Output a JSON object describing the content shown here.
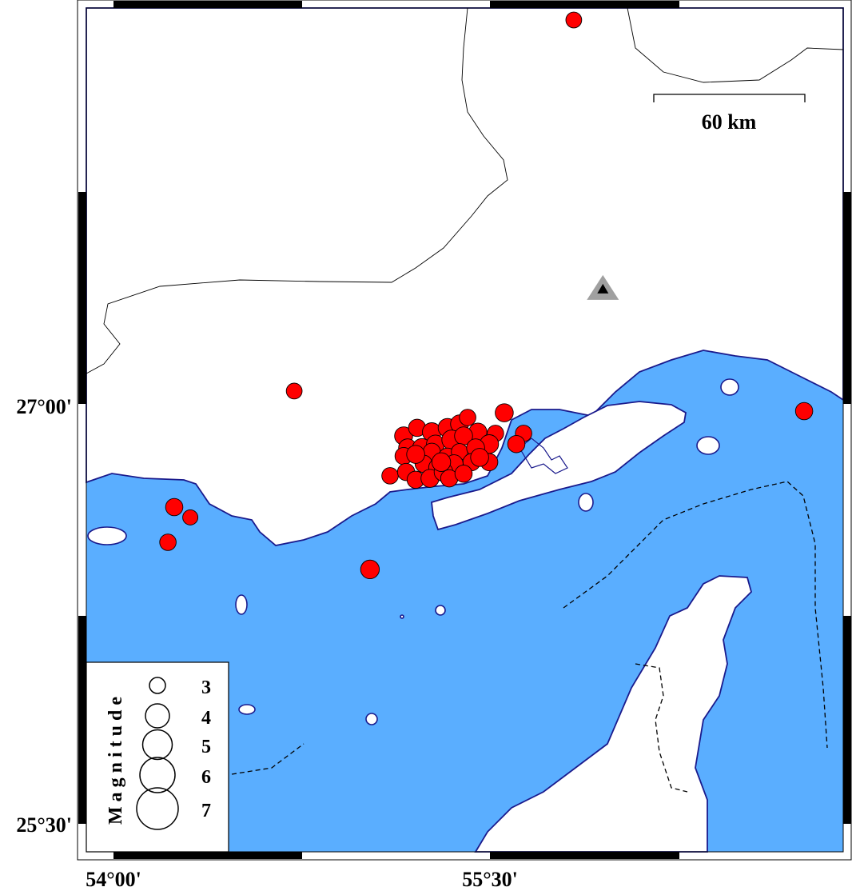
{
  "map": {
    "colors": {
      "sea": "#5AAEFF",
      "land": "#FFFFFF",
      "coastline": "#1A1A8C",
      "events": "#FF0000",
      "volcano": "#A0A0A0"
    },
    "axes": {
      "lat_labels": [
        "27°00'",
        "25°30'"
      ],
      "lon_labels": [
        "54°00'",
        "55°30'"
      ]
    },
    "scale_bar": {
      "label": "60 km"
    },
    "volcano": {
      "icon": "triangle-icon",
      "lon": 55.95,
      "lat": 27.41
    },
    "legend": {
      "title": "Magnitude",
      "magnitudes": [
        {
          "value": 3,
          "label": "3"
        },
        {
          "value": 4,
          "label": "4"
        },
        {
          "value": 5,
          "label": "5"
        },
        {
          "value": 6,
          "label": "6"
        },
        {
          "value": 7,
          "label": "7"
        }
      ]
    },
    "events": [
      {
        "lon": 55.834,
        "lat": 28.381,
        "mag": 3.2
      },
      {
        "lon": 54.72,
        "lat": 27.052,
        "mag": 3.2
      },
      {
        "lon": 55.557,
        "lat": 26.974,
        "mag": 3.5
      },
      {
        "lon": 56.752,
        "lat": 26.98,
        "mag": 3.4
      },
      {
        "lon": 54.242,
        "lat": 26.636,
        "mag": 3.4
      },
      {
        "lon": 54.306,
        "lat": 26.599,
        "mag": 3.1
      },
      {
        "lon": 54.217,
        "lat": 26.51,
        "mag": 3.3
      },
      {
        "lon": 55.022,
        "lat": 26.413,
        "mag": 3.6
      },
      {
        "lon": 55.102,
        "lat": 26.748,
        "mag": 3.3
      },
      {
        "lon": 55.634,
        "lat": 26.9,
        "mag": 3.3
      },
      {
        "lon": 55.605,
        "lat": 26.862,
        "mag": 3.4
      },
      {
        "lon": 55.156,
        "lat": 26.891,
        "mag": 3.5
      },
      {
        "lon": 55.21,
        "lat": 26.92,
        "mag": 3.4
      },
      {
        "lon": 55.268,
        "lat": 26.905,
        "mag": 3.6
      },
      {
        "lon": 55.331,
        "lat": 26.92,
        "mag": 3.6
      },
      {
        "lon": 55.379,
        "lat": 26.934,
        "mag": 3.5
      },
      {
        "lon": 55.411,
        "lat": 26.957,
        "mag": 3.3
      },
      {
        "lon": 55.452,
        "lat": 26.905,
        "mag": 3.5
      },
      {
        "lon": 55.522,
        "lat": 26.9,
        "mag": 3.3
      },
      {
        "lon": 55.172,
        "lat": 26.848,
        "mag": 3.5
      },
      {
        "lon": 55.156,
        "lat": 26.819,
        "mag": 3.4
      },
      {
        "lon": 55.229,
        "lat": 26.848,
        "mag": 3.6
      },
      {
        "lon": 55.283,
        "lat": 26.862,
        "mag": 3.5
      },
      {
        "lon": 55.347,
        "lat": 26.877,
        "mag": 3.7
      },
      {
        "lon": 55.395,
        "lat": 26.891,
        "mag": 3.5
      },
      {
        "lon": 55.497,
        "lat": 26.862,
        "mag": 3.6
      },
      {
        "lon": 55.268,
        "lat": 26.834,
        "mag": 3.4
      },
      {
        "lon": 55.331,
        "lat": 26.814,
        "mag": 3.6
      },
      {
        "lon": 55.379,
        "lat": 26.834,
        "mag": 3.3
      },
      {
        "lon": 55.443,
        "lat": 26.848,
        "mag": 3.5
      },
      {
        "lon": 55.236,
        "lat": 26.791,
        "mag": 3.4
      },
      {
        "lon": 55.293,
        "lat": 26.777,
        "mag": 3.6
      },
      {
        "lon": 55.357,
        "lat": 26.791,
        "mag": 3.5
      },
      {
        "lon": 55.427,
        "lat": 26.797,
        "mag": 3.4
      },
      {
        "lon": 55.497,
        "lat": 26.797,
        "mag": 3.4
      },
      {
        "lon": 55.166,
        "lat": 26.762,
        "mag": 3.4
      },
      {
        "lon": 55.204,
        "lat": 26.734,
        "mag": 3.4
      },
      {
        "lon": 55.261,
        "lat": 26.739,
        "mag": 3.5
      },
      {
        "lon": 55.315,
        "lat": 26.762,
        "mag": 3.6
      },
      {
        "lon": 55.338,
        "lat": 26.739,
        "mag": 3.4
      },
      {
        "lon": 55.395,
        "lat": 26.756,
        "mag": 3.4
      },
      {
        "lon": 55.459,
        "lat": 26.814,
        "mag": 3.5
      },
      {
        "lon": 55.204,
        "lat": 26.825,
        "mag": 3.5
      },
      {
        "lon": 55.306,
        "lat": 26.797,
        "mag": 3.6
      }
    ]
  }
}
